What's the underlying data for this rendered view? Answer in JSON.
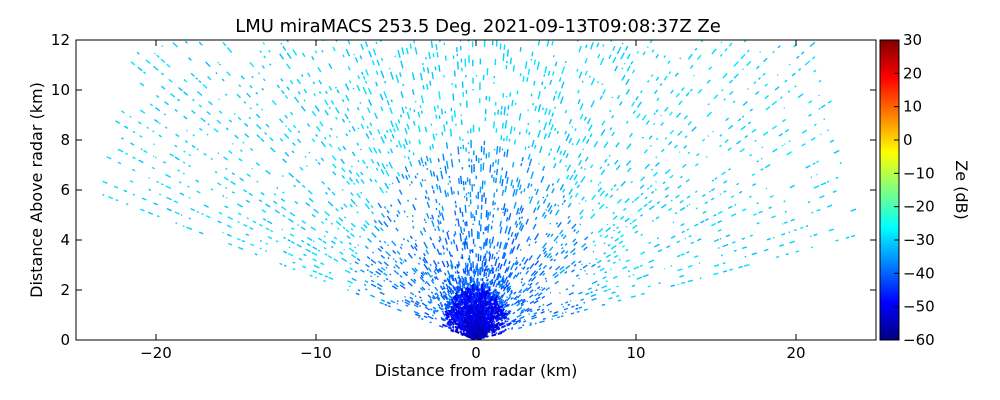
{
  "chart_data": {
    "type": "heatmap",
    "subtype": "radar-rhi-scan",
    "title": "LMU miraMACS 253.5 Deg. 2021-09-13T09:08:37Z  Ze",
    "xlabel": "Distance from radar (km)",
    "ylabel": "Distance Above radar  (km)",
    "xlim": [
      -25,
      25
    ],
    "ylim": [
      0,
      12
    ],
    "xticks": [
      -20,
      -10,
      0,
      10,
      20
    ],
    "yticks": [
      0,
      2,
      4,
      6,
      8,
      10,
      12
    ],
    "colorbar": {
      "label": "Ze (dB)",
      "colormap": "jet",
      "range": [
        -60,
        30
      ],
      "ticks": [
        -60,
        -50,
        -40,
        -30,
        -20,
        -10,
        0,
        10,
        20,
        30
      ]
    },
    "scan": {
      "max_range_km": 24,
      "elevation_start_deg": 10,
      "elevation_end_deg": 166,
      "ze_near_radar_db": -55,
      "ze_mid_range_db": -40,
      "ze_far_range_db": -30
    },
    "colors": {
      "jet": [
        "#00007f",
        "#0000ff",
        "#007fff",
        "#00ffff",
        "#7fff7f",
        "#ffff00",
        "#ff7f00",
        "#ff0000",
        "#7f0000"
      ]
    }
  }
}
